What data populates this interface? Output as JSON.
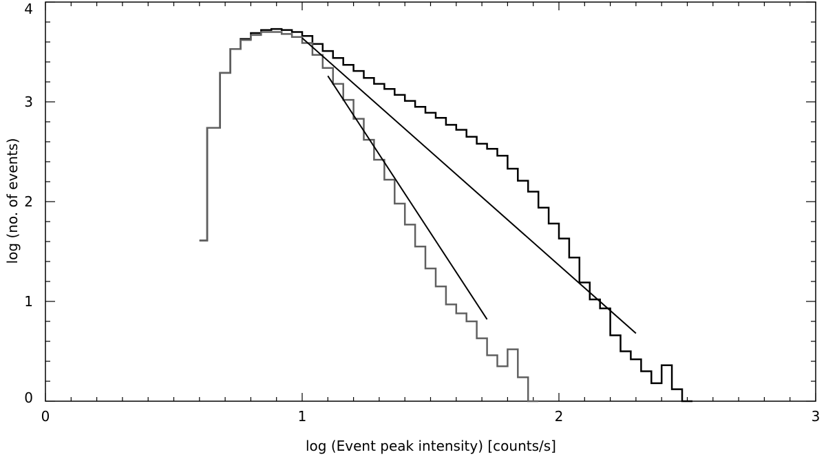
{
  "chart_data": {
    "type": "line",
    "title": "",
    "xlabel": "log (Event peak intensity) [counts/s]",
    "ylabel": "log (no. of events)",
    "xlim": [
      0,
      3
    ],
    "ylim": [
      0,
      4
    ],
    "x_ticks": [
      0,
      1,
      2,
      3
    ],
    "x_tick_labels": [
      "0",
      "1",
      "2",
      "3"
    ],
    "y_ticks": [
      0,
      1,
      2,
      3,
      4
    ],
    "y_tick_labels": [
      "0",
      "1",
      "2",
      "3",
      "4"
    ],
    "grid": false,
    "legend": "none",
    "series": [
      {
        "style": "histogram",
        "color": "#000000",
        "points": [
          [
            0.6,
            1.61
          ],
          [
            0.63,
            2.74
          ],
          [
            0.68,
            3.29
          ],
          [
            0.72,
            3.53
          ],
          [
            0.76,
            3.63
          ],
          [
            0.8,
            3.69
          ],
          [
            0.84,
            3.72
          ],
          [
            0.88,
            3.73
          ],
          [
            0.92,
            3.72
          ],
          [
            0.96,
            3.7
          ],
          [
            1.0,
            3.66
          ],
          [
            1.04,
            3.58
          ],
          [
            1.08,
            3.51
          ],
          [
            1.12,
            3.44
          ],
          [
            1.16,
            3.37
          ],
          [
            1.2,
            3.31
          ],
          [
            1.24,
            3.24
          ],
          [
            1.28,
            3.18
          ],
          [
            1.32,
            3.13
          ],
          [
            1.36,
            3.07
          ],
          [
            1.4,
            3.01
          ],
          [
            1.44,
            2.95
          ],
          [
            1.48,
            2.89
          ],
          [
            1.52,
            2.84
          ],
          [
            1.56,
            2.77
          ],
          [
            1.6,
            2.72
          ],
          [
            1.64,
            2.65
          ],
          [
            1.68,
            2.58
          ],
          [
            1.72,
            2.53
          ],
          [
            1.76,
            2.46
          ],
          [
            1.8,
            2.33
          ],
          [
            1.84,
            2.21
          ],
          [
            1.88,
            2.1
          ],
          [
            1.92,
            1.94
          ],
          [
            1.96,
            1.78
          ],
          [
            2.0,
            1.63
          ],
          [
            2.04,
            1.44
          ],
          [
            2.08,
            1.19
          ],
          [
            2.12,
            1.02
          ],
          [
            2.16,
            0.93
          ],
          [
            2.2,
            0.66
          ],
          [
            2.24,
            0.5
          ],
          [
            2.28,
            0.42
          ],
          [
            2.32,
            0.3
          ],
          [
            2.36,
            0.18
          ],
          [
            2.4,
            0.36
          ],
          [
            2.44,
            0.12
          ],
          [
            2.48,
            0.0
          ]
        ]
      },
      {
        "style": "histogram",
        "color": "#606060",
        "points": [
          [
            0.6,
            1.61
          ],
          [
            0.63,
            2.74
          ],
          [
            0.68,
            3.29
          ],
          [
            0.72,
            3.53
          ],
          [
            0.76,
            3.62
          ],
          [
            0.8,
            3.67
          ],
          [
            0.84,
            3.7
          ],
          [
            0.88,
            3.7
          ],
          [
            0.92,
            3.68
          ],
          [
            0.96,
            3.65
          ],
          [
            1.0,
            3.59
          ],
          [
            1.04,
            3.47
          ],
          [
            1.08,
            3.34
          ],
          [
            1.12,
            3.18
          ],
          [
            1.16,
            3.02
          ],
          [
            1.2,
            2.83
          ],
          [
            1.24,
            2.62
          ],
          [
            1.28,
            2.42
          ],
          [
            1.32,
            2.22
          ],
          [
            1.36,
            1.98
          ],
          [
            1.4,
            1.77
          ],
          [
            1.44,
            1.55
          ],
          [
            1.48,
            1.33
          ],
          [
            1.52,
            1.15
          ],
          [
            1.56,
            0.97
          ],
          [
            1.6,
            0.88
          ],
          [
            1.64,
            0.8
          ],
          [
            1.68,
            0.63
          ],
          [
            1.72,
            0.46
          ],
          [
            1.76,
            0.35
          ],
          [
            1.8,
            0.52
          ],
          [
            1.84,
            0.24
          ],
          [
            1.88,
            0.0
          ]
        ]
      },
      {
        "style": "fit",
        "color": "#000000",
        "points": [
          [
            1.0,
            3.64
          ],
          [
            2.3,
            0.68
          ]
        ]
      },
      {
        "style": "fit",
        "color": "#000000",
        "points": [
          [
            1.1,
            3.26
          ],
          [
            1.72,
            0.82
          ]
        ]
      }
    ]
  }
}
